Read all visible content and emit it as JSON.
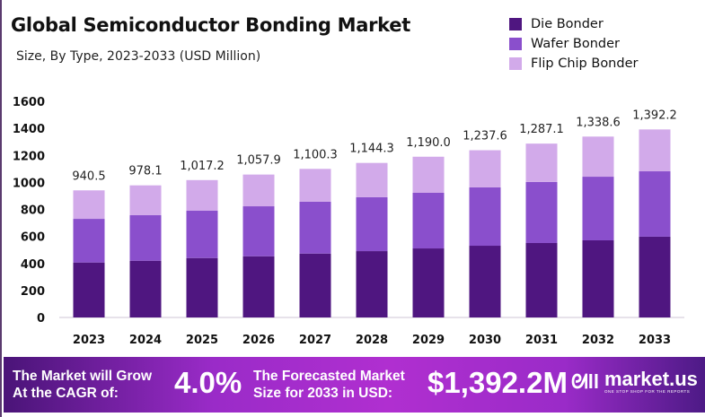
{
  "chart_data": {
    "type": "bar",
    "stacked": true,
    "title": "Global Semiconductor Bonding Market",
    "subtitle": "Size, By Type, 2023-2033 (USD Million)",
    "categories": [
      "2023",
      "2024",
      "2025",
      "2026",
      "2027",
      "2028",
      "2029",
      "2030",
      "2031",
      "2032",
      "2033"
    ],
    "series": [
      {
        "name": "Die Bonder",
        "color": "#4f1680",
        "values": [
          407,
          420,
          440,
          453,
          473,
          491,
          511,
          531,
          551,
          571,
          598
        ]
      },
      {
        "name": "Wafer Bonder",
        "color": "#8a4fcc",
        "values": [
          323,
          337,
          350,
          370,
          384,
          399,
          412,
          432,
          452,
          471,
          484
        ]
      },
      {
        "name": "Flip Chip Bonder",
        "color": "#d2aaea",
        "values": [
          211,
          221,
          227,
          235,
          243,
          254,
          267,
          275,
          284,
          297,
          310
        ]
      }
    ],
    "totals": [
      "940.5",
      "978.1",
      "1,017.2",
      "1,057.9",
      "1,100.3",
      "1,144.3",
      "1,190.0",
      "1,237.6",
      "1,287.1",
      "1,338.6",
      "1,392.2"
    ],
    "yticks": [
      "0",
      "200",
      "400",
      "600",
      "800",
      "1000",
      "1200",
      "1400",
      "1600"
    ],
    "ylim": [
      0,
      1600
    ],
    "grid": false,
    "legend": "top-right"
  },
  "banner": {
    "cagr_label_line1": "The Market will Grow",
    "cagr_label_line2": "At the CAGR of:",
    "cagr_value": "4.0%",
    "forecast_label_line1": "The Forecasted Market",
    "forecast_label_line2": "Size for 2033 in USD:",
    "forecast_value": "$1,392.2M",
    "logo_name": "market.us",
    "logo_tagline": "ONE STOP SHOP FOR THE REPORTS"
  }
}
